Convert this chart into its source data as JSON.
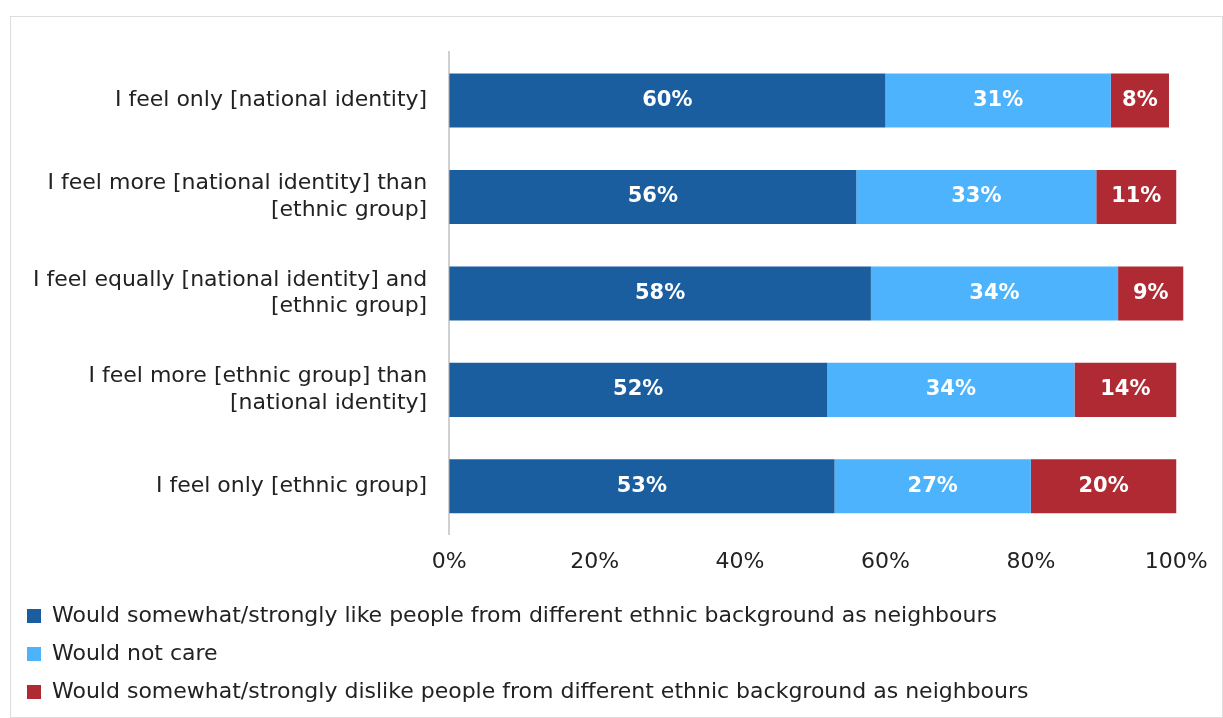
{
  "chart_data": {
    "type": "bar",
    "orientation": "horizontal",
    "stacked": true,
    "categories": [
      "I feel only [national identity]",
      "I feel more [national identity] than [ethnic group]",
      "I feel equally [national identity] and [ethnic group]",
      "I feel more [ethnic group] than [national identity]",
      "I feel only [ethnic group]"
    ],
    "series": [
      {
        "name": "Would somewhat/strongly like people from different ethnic background as neighbours",
        "color": "#1b5e9f",
        "values": [
          60,
          56,
          58,
          52,
          53
        ],
        "value_labels": [
          "60%",
          "56%",
          "58%",
          "52%",
          "53%"
        ]
      },
      {
        "name": "Would not care",
        "color": "#4db3fc",
        "values": [
          31,
          33,
          34,
          34,
          27
        ],
        "value_labels": [
          "31%",
          "33%",
          "34%",
          "34%",
          "27%"
        ]
      },
      {
        "name": "Would somewhat/strongly dislike people from different ethnic background as neighbours",
        "color": "#b02a33",
        "values": [
          8,
          11,
          9,
          14,
          20
        ],
        "value_labels": [
          "8%",
          "11%",
          "9%",
          "14%",
          "20%"
        ]
      }
    ],
    "xlim": [
      0,
      101
    ],
    "xticks": [
      {
        "value": 0,
        "label": "0%"
      },
      {
        "value": 20,
        "label": "20%"
      },
      {
        "value": 40,
        "label": "40%"
      },
      {
        "value": 60,
        "label": "60%"
      },
      {
        "value": 80,
        "label": "80%"
      },
      {
        "value": 100,
        "label": "100%"
      }
    ],
    "grid": false,
    "legend": "bottom"
  }
}
